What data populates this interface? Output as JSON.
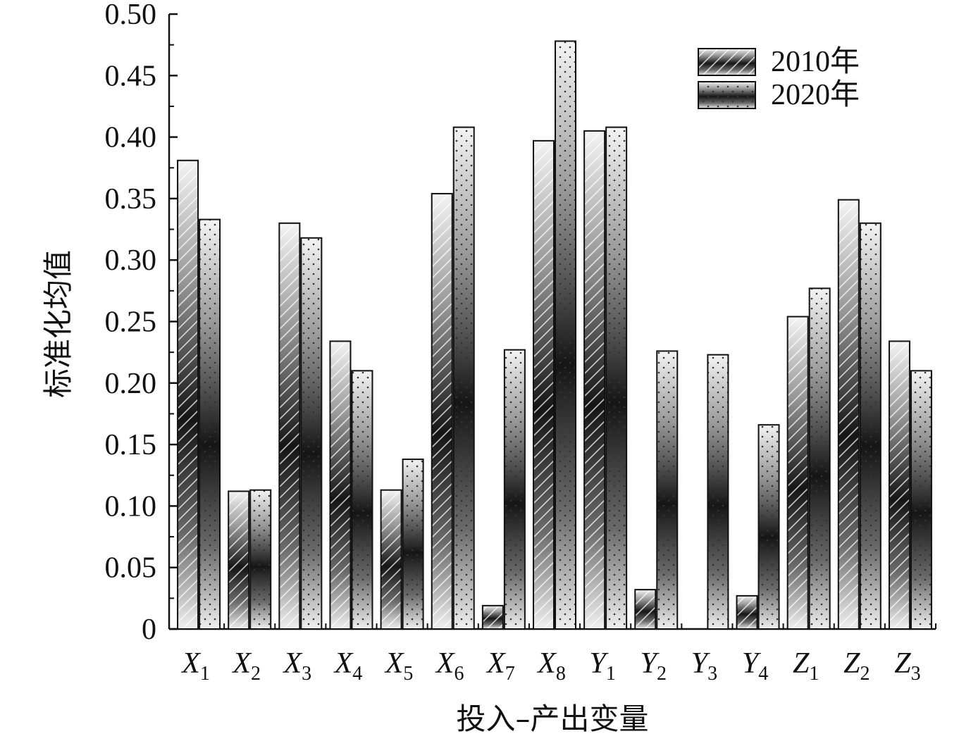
{
  "chart_data": {
    "type": "bar",
    "title": "",
    "xlabel": "投入–产出变量",
    "ylabel": "标准化均值",
    "ylim": [
      0,
      0.5
    ],
    "yticks": [
      "0",
      "0.05",
      "0.10",
      "0.15",
      "0.20",
      "0.25",
      "0.30",
      "0.35",
      "0.40",
      "0.45",
      "0.50"
    ],
    "categories": [
      {
        "base": "X",
        "sub": "1"
      },
      {
        "base": "X",
        "sub": "2"
      },
      {
        "base": "X",
        "sub": "3"
      },
      {
        "base": "X",
        "sub": "4"
      },
      {
        "base": "X",
        "sub": "5"
      },
      {
        "base": "X",
        "sub": "6"
      },
      {
        "base": "X",
        "sub": "7"
      },
      {
        "base": "X",
        "sub": "8"
      },
      {
        "base": "Y",
        "sub": "1"
      },
      {
        "base": "Y",
        "sub": "2"
      },
      {
        "base": "Y",
        "sub": "3"
      },
      {
        "base": "Y",
        "sub": "4"
      },
      {
        "base": "Z",
        "sub": "1"
      },
      {
        "base": "Z",
        "sub": "2"
      },
      {
        "base": "Z",
        "sub": "3"
      }
    ],
    "series": [
      {
        "name": "2010年",
        "pattern": "hatched",
        "values": [
          0.381,
          0.112,
          0.33,
          0.234,
          0.113,
          0.354,
          0.019,
          0.397,
          0.405,
          0.032,
          0.0,
          0.027,
          0.254,
          0.349,
          0.234
        ]
      },
      {
        "name": "2020年",
        "pattern": "dotted",
        "values": [
          0.333,
          0.113,
          0.318,
          0.21,
          0.138,
          0.408,
          0.227,
          0.478,
          0.408,
          0.226,
          0.223,
          0.166,
          0.277,
          0.33,
          0.21
        ]
      }
    ],
    "grid": false,
    "legend": "top-right"
  }
}
